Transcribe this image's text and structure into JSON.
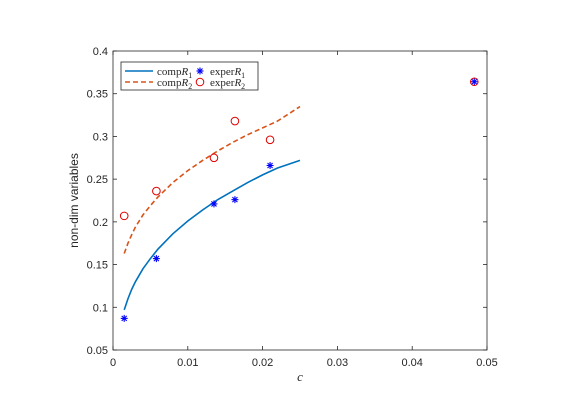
{
  "chart_data": {
    "type": "line",
    "title": "",
    "xlabel": "c",
    "ylabel": "non-dim variables",
    "xlim": [
      0,
      0.05
    ],
    "ylim": [
      0.05,
      0.4
    ],
    "xticks": [
      0,
      0.01,
      0.02,
      0.03,
      0.04,
      0.05
    ],
    "xtick_labels": [
      "0",
      "0.01",
      "0.02",
      "0.03",
      "0.04",
      "0.05"
    ],
    "yticks": [
      0.05,
      0.1,
      0.15,
      0.2,
      0.25,
      0.3,
      0.35,
      0.4
    ],
    "ytick_labels": [
      "0.05",
      "0.1",
      "0.15",
      "0.2",
      "0.25",
      "0.3",
      "0.35",
      "0.4"
    ],
    "grid": false,
    "legend_position": "top-left",
    "series": [
      {
        "name": "compR1",
        "legend_main": "comp",
        "legend_var": "R",
        "legend_sub": "1",
        "kind": "line",
        "style": "solid",
        "color": "#0072BD",
        "x": [
          0.0015,
          0.002,
          0.0025,
          0.003,
          0.004,
          0.005,
          0.006,
          0.008,
          0.01,
          0.012,
          0.014,
          0.016,
          0.018,
          0.02,
          0.022,
          0.025
        ],
        "y": [
          0.097,
          0.11,
          0.121,
          0.13,
          0.145,
          0.157,
          0.168,
          0.186,
          0.201,
          0.214,
          0.226,
          0.236,
          0.246,
          0.255,
          0.263,
          0.272
        ]
      },
      {
        "name": "compR2",
        "legend_main": "comp",
        "legend_var": "R",
        "legend_sub": "2",
        "kind": "line",
        "style": "dashed",
        "color": "#D95319",
        "x": [
          0.0015,
          0.002,
          0.0025,
          0.003,
          0.004,
          0.005,
          0.006,
          0.008,
          0.01,
          0.012,
          0.014,
          0.016,
          0.018,
          0.02,
          0.022,
          0.025
        ],
        "y": [
          0.163,
          0.175,
          0.185,
          0.194,
          0.208,
          0.219,
          0.229,
          0.246,
          0.26,
          0.272,
          0.283,
          0.293,
          0.302,
          0.31,
          0.318,
          0.335
        ]
      },
      {
        "name": "experR1",
        "legend_main": "exper",
        "legend_var": "R",
        "legend_sub": "1",
        "kind": "scatter",
        "marker": "asterisk",
        "color": "#0000FF",
        "x": [
          0.0015,
          0.0058,
          0.0135,
          0.0163,
          0.021,
          0.0483
        ],
        "y": [
          0.087,
          0.157,
          0.221,
          0.226,
          0.266,
          0.364
        ]
      },
      {
        "name": "experR2",
        "legend_main": "exper",
        "legend_var": "R",
        "legend_sub": "2",
        "kind": "scatter",
        "marker": "circle",
        "color": "#E00000",
        "x": [
          0.0015,
          0.0058,
          0.0135,
          0.0163,
          0.021,
          0.0483
        ],
        "y": [
          0.207,
          0.236,
          0.275,
          0.318,
          0.296,
          0.364
        ]
      }
    ]
  }
}
